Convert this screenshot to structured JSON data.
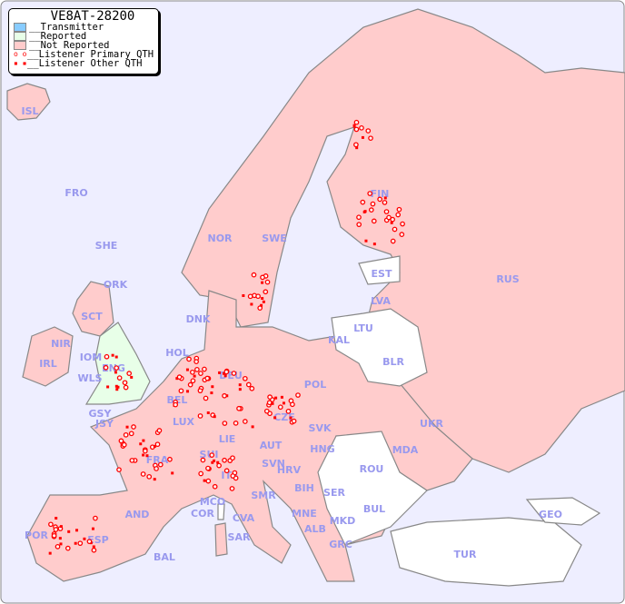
{
  "legend": {
    "title": "VE8AT-28200",
    "items": [
      {
        "label": "__Transmitter",
        "color": "#88ccff"
      },
      {
        "label": "__Reported",
        "color": "#e8ffe8"
      },
      {
        "label": "__Not Reported",
        "color": "#ffcccc"
      },
      {
        "label": "__Listener Primary QTH",
        "marker": "open-circle"
      },
      {
        "label": "__Listener Other QTH",
        "marker": "filled-square"
      }
    ]
  },
  "colors": {
    "sea": "#eeeeff",
    "not_reported": "#ffcccc",
    "reported": "#e8ffe8",
    "marker": "#ff0000",
    "label": "#9999ee"
  },
  "labels": [
    "ISL",
    "FRO",
    "SHE",
    "ORK",
    "NOR",
    "SWE",
    "FIN",
    "RUS",
    "EST",
    "LVA",
    "LTU",
    "KAL",
    "BLR",
    "DNK",
    "HOL",
    "DEU",
    "POL",
    "UKR",
    "IRL",
    "NIR",
    "SCT",
    "IOM",
    "WLS",
    "ENG",
    "GSY",
    "JSY",
    "BEL",
    "LUX",
    "CZE",
    "SVK",
    "AUT",
    "HNG",
    "MDA",
    "FRA",
    "SUI",
    "LIE",
    "SVN",
    "HRV",
    "ROU",
    "ITA",
    "BIH",
    "SER",
    "BUL",
    "MCO",
    "COR",
    "SMR",
    "MNE",
    "ALB",
    "MKD",
    "CVA",
    "AND",
    "POR",
    "ESP",
    "BAL",
    "SAR",
    "GRC",
    "TUR",
    "GEO"
  ]
}
